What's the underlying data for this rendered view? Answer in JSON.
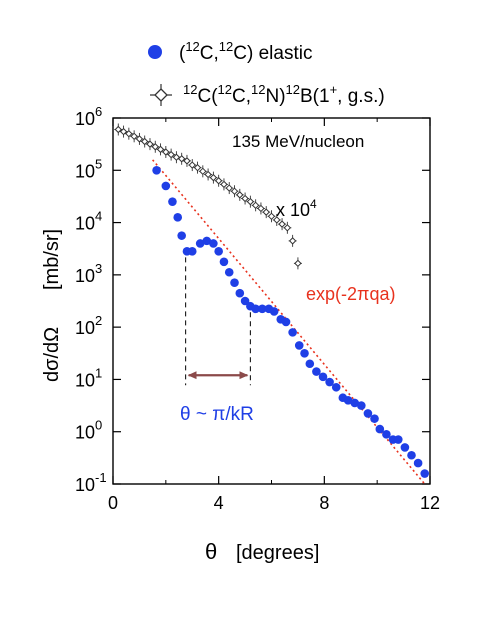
{
  "chart_data": {
    "type": "scatter",
    "log_y": true,
    "xlim": [
      0,
      12
    ],
    "ylim_exp": [
      -1,
      6
    ],
    "x_ticks": [
      "0",
      "4",
      "8",
      "12"
    ],
    "x_tick_values": [
      0,
      4,
      8,
      12
    ],
    "y_tick_exponents": [
      -1,
      0,
      1,
      2,
      3,
      4,
      5,
      6
    ],
    "y_tick_base": "10",
    "y_tick_labels": [
      "-1",
      "0",
      "1",
      "2",
      "3",
      "4",
      "5",
      "6"
    ],
    "xlabel": {
      "symbol": "θ",
      "unit": "[degrees]"
    },
    "ylabel": {
      "symbol": "dσ/dΩ",
      "unit": "[mb/sr]"
    },
    "legend": [
      {
        "marker": "filled-circle",
        "color": "#1f3fe6",
        "text_parts": [
          "(",
          "12",
          "C,",
          "12",
          "C) elastic"
        ]
      },
      {
        "marker": "open-diamond-errorbar",
        "color": "#333333",
        "text_parts": [
          "12",
          "C(",
          "12",
          "C,",
          "12",
          "N)",
          "12",
          "B(1",
          "+",
          ", g.s.)"
        ]
      }
    ],
    "legend_position": "top",
    "annotations": {
      "energy": "135 MeV/nucleon",
      "scale_base": "x 10",
      "scale_exp": "4",
      "exp_label": "exp(-2πqa)",
      "theta_label": "θ ~ π/kR",
      "exp_color": "#e8321e",
      "theta_color": "#1f3fe6",
      "arrow_color": "#8b4a4a"
    },
    "exp_line": {
      "x": [
        1.5,
        11.8
      ],
      "log_y": [
        5.2,
        -1.0
      ]
    },
    "theta_arrow": {
      "x1": 2.75,
      "x2": 5.2,
      "log_y": 1.08
    },
    "series": [
      {
        "name": "elastic",
        "color": "#1f3fe6",
        "marker": "filled-circle",
        "points": [
          [
            1.65,
            5.0
          ],
          [
            2.0,
            4.7
          ],
          [
            2.25,
            4.4
          ],
          [
            2.45,
            4.1
          ],
          [
            2.6,
            3.75
          ],
          [
            2.8,
            3.45
          ],
          [
            3.0,
            3.45
          ],
          [
            3.3,
            3.6
          ],
          [
            3.55,
            3.65
          ],
          [
            3.8,
            3.6
          ],
          [
            4.0,
            3.45
          ],
          [
            4.2,
            3.25
          ],
          [
            4.4,
            3.05
          ],
          [
            4.6,
            2.85
          ],
          [
            4.8,
            2.65
          ],
          [
            5.0,
            2.5
          ],
          [
            5.2,
            2.4
          ],
          [
            5.4,
            2.35
          ],
          [
            5.65,
            2.35
          ],
          [
            5.9,
            2.35
          ],
          [
            6.1,
            2.3
          ],
          [
            6.35,
            2.15
          ],
          [
            6.55,
            2.1
          ],
          [
            6.8,
            1.9
          ],
          [
            7.05,
            1.65
          ],
          [
            7.25,
            1.5
          ],
          [
            7.45,
            1.3
          ],
          [
            7.7,
            1.15
          ],
          [
            7.95,
            1.05
          ],
          [
            8.2,
            0.95
          ],
          [
            8.45,
            0.85
          ],
          [
            8.7,
            0.65
          ],
          [
            8.9,
            0.6
          ],
          [
            9.15,
            0.55
          ],
          [
            9.4,
            0.5
          ],
          [
            9.65,
            0.35
          ],
          [
            9.9,
            0.25
          ],
          [
            10.1,
            0.05
          ],
          [
            10.35,
            -0.05
          ],
          [
            10.6,
            -0.15
          ],
          [
            10.8,
            -0.15
          ],
          [
            11.05,
            -0.3
          ],
          [
            11.3,
            -0.45
          ],
          [
            11.55,
            -0.6
          ],
          [
            11.8,
            -0.8
          ]
        ]
      },
      {
        "name": "charge-exchange",
        "color": "#333333",
        "marker": "open-diamond-errorbar",
        "points": [
          [
            0.2,
            5.78
          ],
          [
            0.4,
            5.74
          ],
          [
            0.6,
            5.7
          ],
          [
            0.8,
            5.65
          ],
          [
            1.0,
            5.6
          ],
          [
            1.2,
            5.55
          ],
          [
            1.4,
            5.5
          ],
          [
            1.6,
            5.45
          ],
          [
            1.8,
            5.4
          ],
          [
            2.0,
            5.35
          ],
          [
            2.2,
            5.3
          ],
          [
            2.4,
            5.25
          ],
          [
            2.6,
            5.22
          ],
          [
            2.8,
            5.18
          ],
          [
            3.0,
            5.1
          ],
          [
            3.2,
            5.05
          ],
          [
            3.4,
            4.98
          ],
          [
            3.6,
            4.92
          ],
          [
            3.8,
            4.86
          ],
          [
            4.0,
            4.8
          ],
          [
            4.2,
            4.73
          ],
          [
            4.4,
            4.66
          ],
          [
            4.6,
            4.6
          ],
          [
            4.8,
            4.53
          ],
          [
            5.0,
            4.46
          ],
          [
            5.2,
            4.4
          ],
          [
            5.4,
            4.33
          ],
          [
            5.6,
            4.27
          ],
          [
            5.8,
            4.2
          ],
          [
            6.0,
            4.12
          ],
          [
            6.2,
            4.05
          ],
          [
            6.4,
            3.97
          ],
          [
            6.6,
            3.9
          ],
          [
            6.8,
            3.65
          ],
          [
            7.0,
            3.22
          ]
        ]
      }
    ]
  }
}
